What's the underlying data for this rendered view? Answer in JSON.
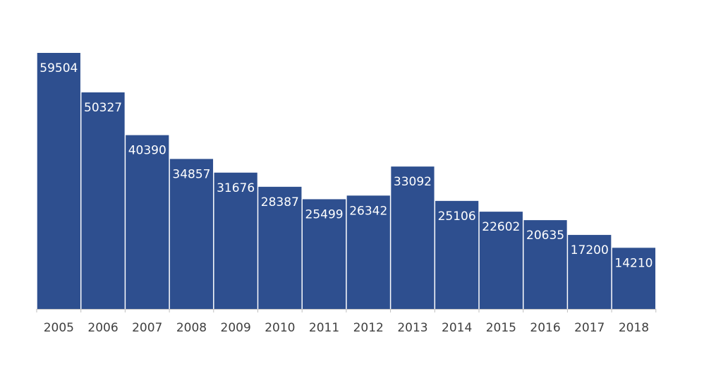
{
  "chart_data": {
    "type": "bar",
    "categories": [
      "2005",
      "2006",
      "2007",
      "2008",
      "2009",
      "2010",
      "2011",
      "2012",
      "2013",
      "2014",
      "2015",
      "2016",
      "2017",
      "2018"
    ],
    "values": [
      59504,
      50327,
      40390,
      34857,
      31676,
      28387,
      25499,
      26342,
      33092,
      25106,
      22602,
      20635,
      17200,
      14210
    ],
    "data_labels": [
      "59504",
      "50327",
      "40390",
      "34857",
      "31676",
      "28387",
      "25499",
      "26342",
      "33092",
      "25106",
      "22602",
      "20635",
      "17200",
      "14210"
    ],
    "title": "",
    "xlabel": "",
    "ylabel": "",
    "ylim": [
      0,
      59504
    ],
    "grid": false,
    "legend": "none",
    "data_labels_position": "inside-top",
    "bar_color": "#2e4f8f",
    "axis_color": "#bfbfbf",
    "tick_label_color": "#404040",
    "data_label_color": "#ffffff"
  }
}
